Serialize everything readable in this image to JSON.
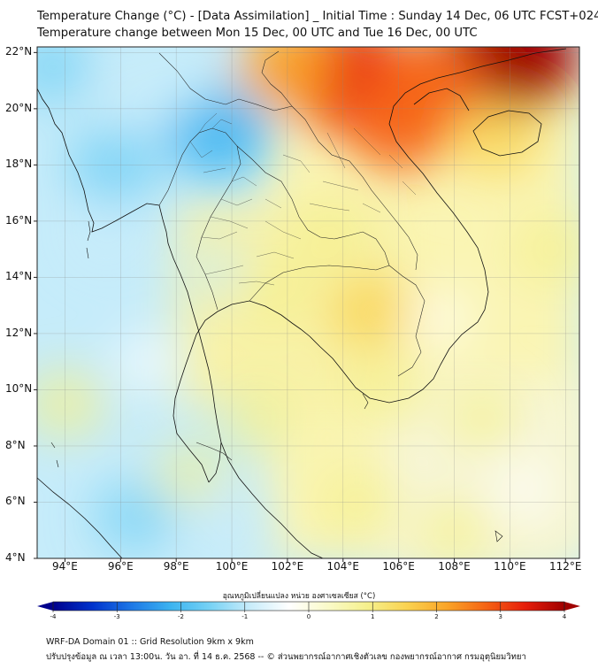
{
  "header": {
    "title_line1": "Temperature Change (°C) - [Data Assimilation] _ Initial Time : Sunday 14 Dec, 06 UTC FCST+024",
    "title_line2": "Temperature change between Mon 15 Dec, 00 UTC and Tue 16 Dec, 00 UTC"
  },
  "axes": {
    "lat_labels": [
      "22°N",
      "20°N",
      "18°N",
      "16°N",
      "14°N",
      "12°N",
      "10°N",
      "8°N",
      "6°N",
      "4°N"
    ],
    "lat_values": [
      22,
      20,
      18,
      16,
      14,
      12,
      10,
      8,
      6,
      4
    ],
    "lon_labels": [
      "94°E",
      "96°E",
      "98°E",
      "100°E",
      "102°E",
      "104°E",
      "106°E",
      "108°E",
      "110°E",
      "112°E"
    ],
    "lon_values": [
      94,
      96,
      98,
      100,
      102,
      104,
      106,
      108,
      110,
      112
    ],
    "lon_range": [
      93,
      112.5
    ],
    "lat_range": [
      4,
      22.2
    ]
  },
  "colorbar": {
    "label": "อุณหภูมิเปลี่ยนแปลง หน่วย องศาเซลเซียส (°C)",
    "ticks": [
      "-4",
      "-3",
      "-2",
      "-1",
      "0",
      "1",
      "2",
      "3",
      "4"
    ],
    "range": [
      -4,
      4
    ],
    "colors": [
      "#00008c",
      "#0033cc",
      "#1e78e6",
      "#3cb4f0",
      "#78d2f5",
      "#c8ecfa",
      "#ffffff",
      "#fafac8",
      "#f5f08c",
      "#fad250",
      "#faa528",
      "#f56414",
      "#e61e0a",
      "#a00000"
    ]
  },
  "footer": {
    "line1": "WRF-DA Domain 01 :: Grid Resolution 9km x 9km",
    "line2": "ปรับปรุงข้อมูล ณ เวลา 13:00น. วัน อา. ที่ 14 ธ.ค. 2568 -- © ส่วนพยากรณ์อากาศเชิงตัวเลข กองพยากรณ์อากาศ กรมอุตุนิยมวิทยา"
  },
  "field_anomalies": [
    {
      "lon": 99.5,
      "lat": 19.2,
      "value": -2.3
    },
    {
      "lon": 95.8,
      "lat": 18.0,
      "value": -1.8
    },
    {
      "lon": 96.5,
      "lat": 20.5,
      "value": -1.2
    },
    {
      "lon": 93.5,
      "lat": 21.5,
      "value": -1.4
    },
    {
      "lon": 98.0,
      "lat": 21.0,
      "value": -1.0
    },
    {
      "lon": 95.5,
      "lat": 15.5,
      "value": -0.9
    },
    {
      "lon": 96.5,
      "lat": 5.5,
      "value": -1.3
    },
    {
      "lon": 100.0,
      "lat": 5.0,
      "value": -1.2
    },
    {
      "lon": 99.5,
      "lat": 14.2,
      "value": -0.7
    },
    {
      "lon": 97.0,
      "lat": 11.0,
      "value": -0.6
    },
    {
      "lon": 107.5,
      "lat": 12.5,
      "value": -0.5
    },
    {
      "lon": 110.5,
      "lat": 6.5,
      "value": -0.4
    },
    {
      "lon": 104.0,
      "lat": 21.2,
      "value": 3.4
    },
    {
      "lon": 110.0,
      "lat": 21.9,
      "value": 3.8
    },
    {
      "lon": 106.0,
      "lat": 19.5,
      "value": 2.6
    },
    {
      "lon": 102.0,
      "lat": 21.5,
      "value": 2.2
    },
    {
      "lon": 107.0,
      "lat": 21.0,
      "value": 2.6
    },
    {
      "lon": 109.5,
      "lat": 19.0,
      "value": 1.6
    },
    {
      "lon": 105.0,
      "lat": 12.8,
      "value": 1.5
    },
    {
      "lon": 103.5,
      "lat": 15.5,
      "value": 1.0
    },
    {
      "lon": 101.5,
      "lat": 13.5,
      "value": 1.1
    },
    {
      "lon": 105.5,
      "lat": 10.0,
      "value": 1.2
    },
    {
      "lon": 94.0,
      "lat": 9.5,
      "value": 1.2
    },
    {
      "lon": 101.0,
      "lat": 9.0,
      "value": 0.9
    },
    {
      "lon": 98.5,
      "lat": 7.0,
      "value": 0.8
    },
    {
      "lon": 109.0,
      "lat": 9.0,
      "value": 0.9
    },
    {
      "lon": 111.5,
      "lat": 15.0,
      "value": 1.0
    },
    {
      "lon": 104.5,
      "lat": 6.0,
      "value": 1.0
    },
    {
      "lon": 108.0,
      "lat": 5.0,
      "value": 0.9
    }
  ]
}
